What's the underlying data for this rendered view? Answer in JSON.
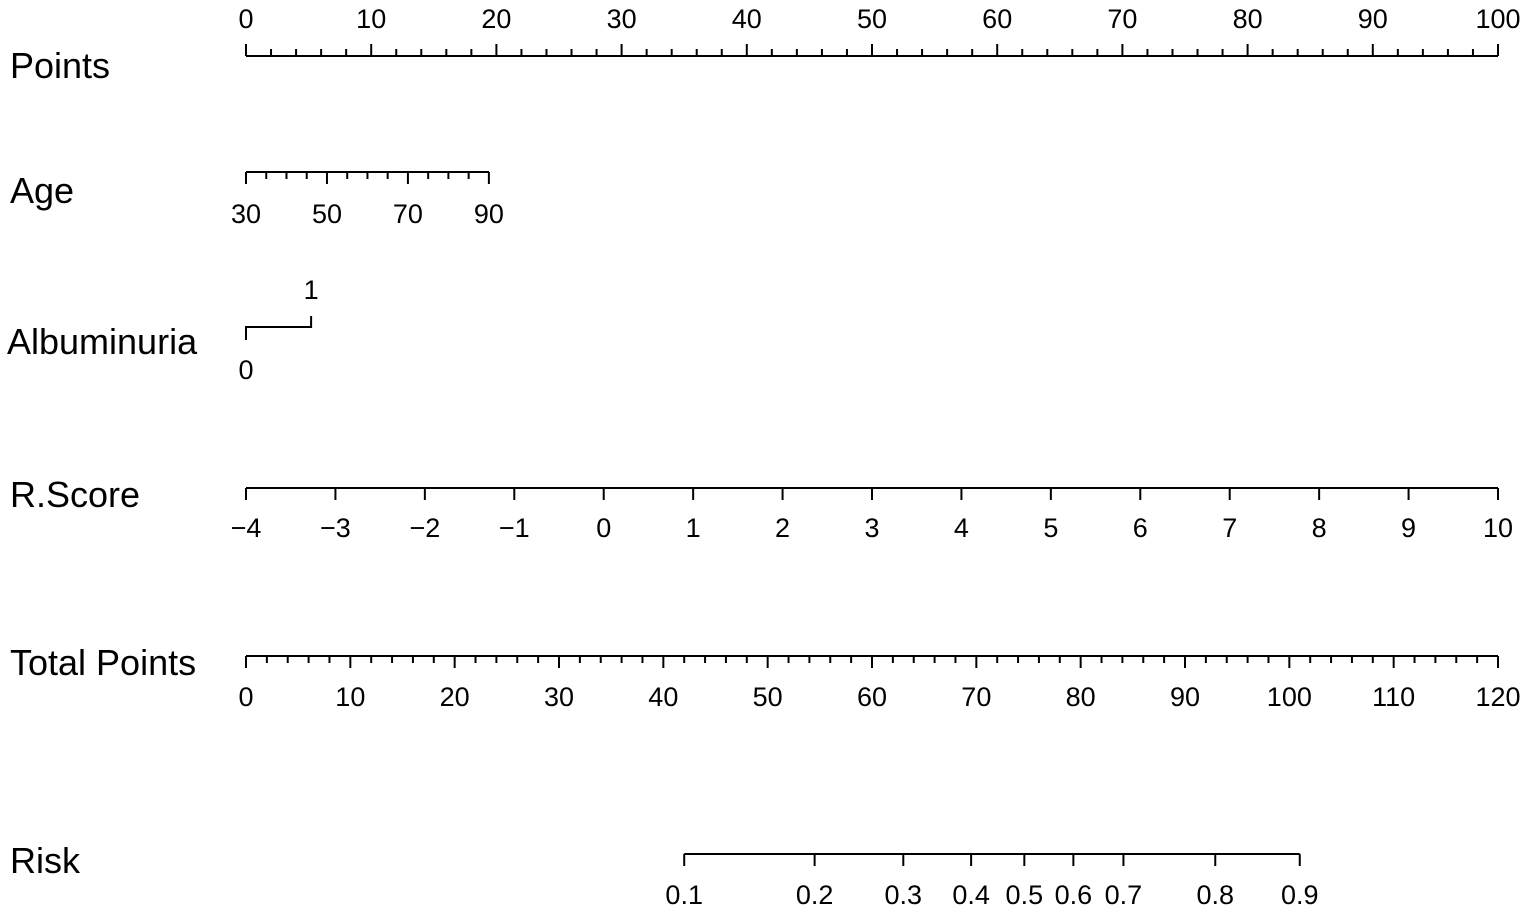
{
  "chart_data": {
    "type": "nomogram",
    "rows": [
      {
        "label": "Points",
        "min": 0,
        "max": 100,
        "labels": [
          "0",
          "10",
          "20",
          "30",
          "40",
          "50",
          "60",
          "70",
          "80",
          "90",
          "100"
        ],
        "label_values": [
          0,
          10,
          20,
          30,
          40,
          50,
          60,
          70,
          80,
          90,
          100
        ],
        "minor_step": 2
      },
      {
        "label": "Age",
        "min": 30,
        "max": 90,
        "labels": [
          "30",
          "50",
          "70",
          "90"
        ],
        "label_values": [
          30,
          50,
          70,
          90
        ],
        "minor_step": 5
      },
      {
        "label": "Albuminuria",
        "levels": [
          "0",
          "1"
        ]
      },
      {
        "label": "R.Score",
        "min": -4,
        "max": 10,
        "labels": [
          "−4",
          "−3",
          "−2",
          "−1",
          "0",
          "1",
          "2",
          "3",
          "4",
          "5",
          "6",
          "7",
          "8",
          "9",
          "10"
        ],
        "label_values": [
          -4,
          -3,
          -2,
          -1,
          0,
          1,
          2,
          3,
          4,
          5,
          6,
          7,
          8,
          9,
          10
        ],
        "minor_step": 1
      },
      {
        "label": "Total Points",
        "min": 0,
        "max": 120,
        "labels": [
          "0",
          "10",
          "20",
          "30",
          "40",
          "50",
          "60",
          "70",
          "80",
          "90",
          "100",
          "110",
          "120"
        ],
        "label_values": [
          0,
          10,
          20,
          30,
          40,
          50,
          60,
          70,
          80,
          90,
          100,
          110,
          120
        ],
        "minor_step": 2
      },
      {
        "label": "Risk",
        "labels": [
          "0.1",
          "0.2",
          "0.3",
          "0.4",
          "0.5",
          "0.6",
          "0.7",
          "0.8",
          "0.9"
        ],
        "label_values": [
          0.1,
          0.2,
          0.3,
          0.4,
          0.5,
          0.6,
          0.7,
          0.8,
          0.9
        ]
      }
    ],
    "points_axis": {
      "min": 0,
      "max": 100
    },
    "age_points_range": [
      0,
      19.4
    ],
    "albuminuria_points": {
      "0": 0,
      "1": 5.2
    },
    "rscore_points_range": [
      0,
      100
    ],
    "total_points_range": [
      0,
      120
    ],
    "risk_total_points": [
      42,
      54.5,
      63,
      69.5,
      74.6,
      79.3,
      84.1,
      92.9,
      101
    ]
  }
}
